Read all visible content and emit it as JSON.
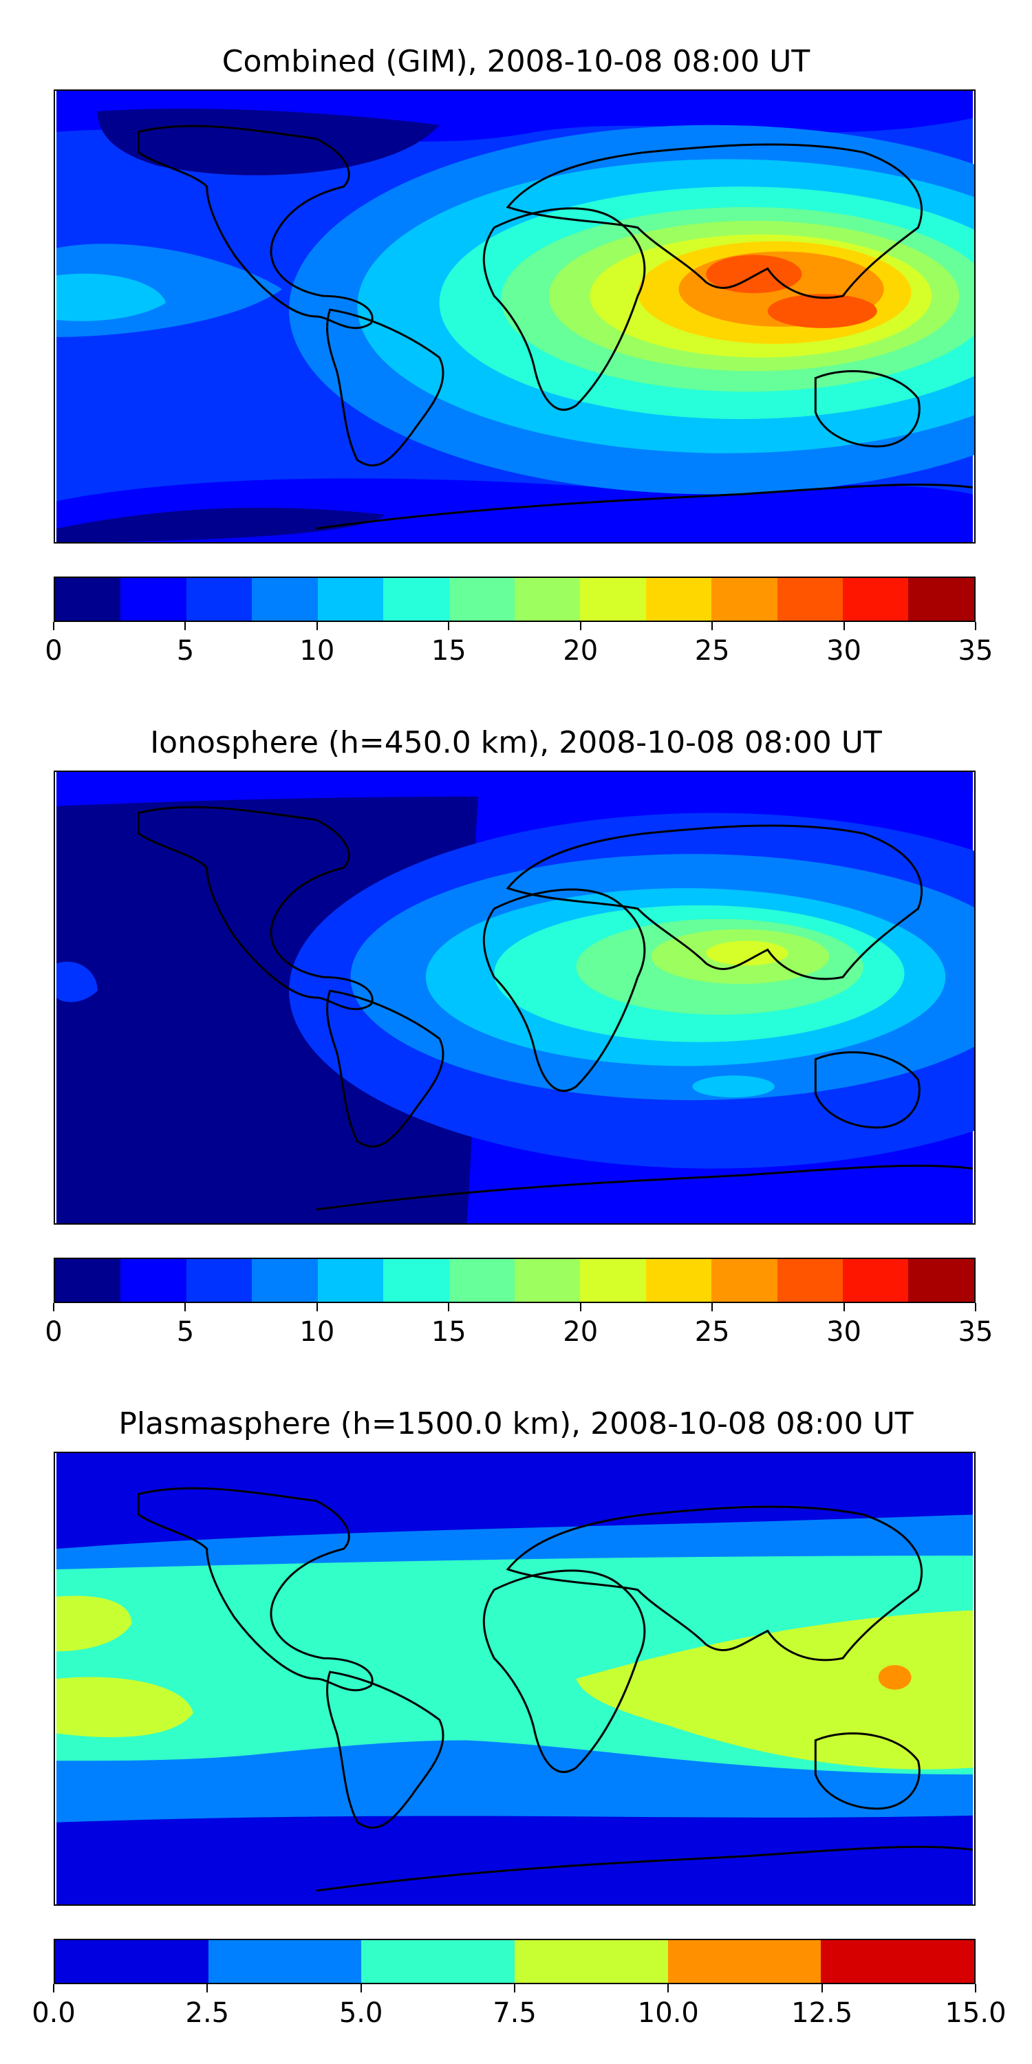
{
  "panels": [
    {
      "title": "Combined (GIM), 2008-10-08 08:00 UT",
      "colorbar": {
        "range": [
          0,
          35
        ],
        "ticks": [
          "0",
          "5",
          "10",
          "15",
          "20",
          "25",
          "30",
          "35"
        ],
        "colors": [
          "#00008f",
          "#0000ff",
          "#0033ff",
          "#0080ff",
          "#00c4ff",
          "#26ffd9",
          "#66ff99",
          "#9cff5f",
          "#d6ff29",
          "#ffd700",
          "#ff9600",
          "#ff5500",
          "#ff1600",
          "#a80000"
        ]
      },
      "features": {
        "max_region": "south-east-asia",
        "peak_level": 30
      }
    },
    {
      "title": "Ionosphere  (h=450.0 km), 2008-10-08 08:00 UT",
      "colorbar": {
        "range": [
          0,
          35
        ],
        "ticks": [
          "0",
          "5",
          "10",
          "15",
          "20",
          "25",
          "30",
          "35"
        ],
        "colors": [
          "#00008f",
          "#0000ff",
          "#0033ff",
          "#0080ff",
          "#00c4ff",
          "#26ffd9",
          "#66ff99",
          "#9cff5f",
          "#d6ff29",
          "#ffd700",
          "#ff9600",
          "#ff5500",
          "#ff1600",
          "#a80000"
        ]
      },
      "features": {
        "max_region": "arabia-india",
        "peak_level": 20
      }
    },
    {
      "title": "Plasmasphere (h=1500.0 km), 2008-10-08 08:00 UT",
      "colorbar": {
        "range": [
          0,
          15
        ],
        "ticks": [
          "0.0",
          "2.5",
          "5.0",
          "7.5",
          "10.0",
          "12.5",
          "15.0"
        ],
        "colors": [
          "#0000e0",
          "#0080ff",
          "#33ffc8",
          "#c8ff33",
          "#ff9100",
          "#d70000"
        ]
      },
      "features": {
        "max_region": "new-guinea",
        "peak_level": 10
      }
    }
  ]
}
